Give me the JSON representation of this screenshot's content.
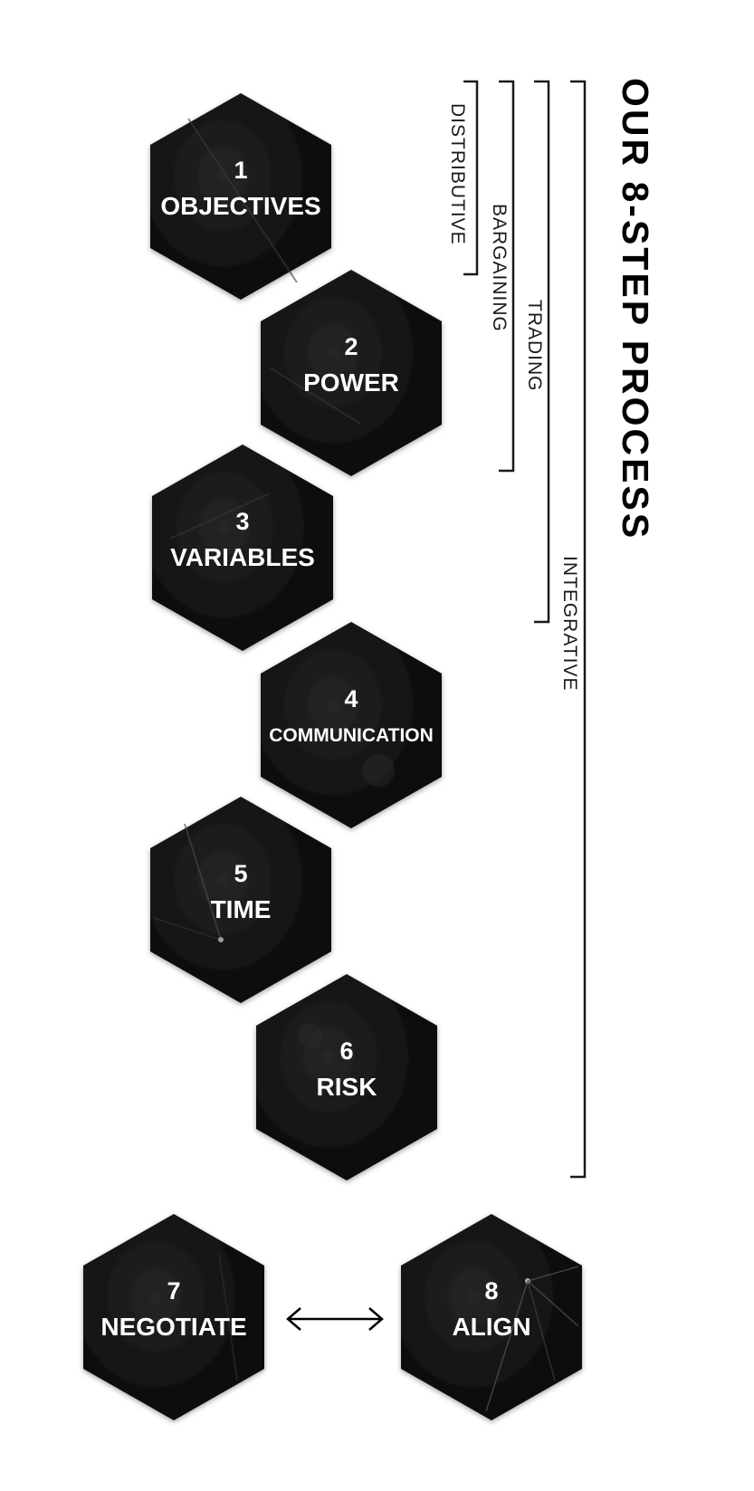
{
  "title": "OUR 8-STEP PROCESS",
  "colors": {
    "hex_fill": "#0d0d0d",
    "hex_text": "#ffffff",
    "bracket_line": "#1a1a1a",
    "title": "#000000"
  },
  "steps": [
    {
      "number": "1",
      "label": "OBJECTIVES"
    },
    {
      "number": "2",
      "label": "POWER"
    },
    {
      "number": "3",
      "label": "VARIABLES"
    },
    {
      "number": "4",
      "label": "COMMUNICATION"
    },
    {
      "number": "5",
      "label": "TIME"
    },
    {
      "number": "6",
      "label": "RISK"
    },
    {
      "number": "7",
      "label": "NEGOTIATE"
    },
    {
      "number": "8",
      "label": "ALIGN"
    }
  ],
  "brackets": [
    {
      "label": "DISTRIBUTIVE",
      "covers_steps": "1"
    },
    {
      "label": "BARGAINING",
      "covers_steps": "1-2"
    },
    {
      "label": "TRADING",
      "covers_steps": "1-3"
    },
    {
      "label": "INTEGRATIVE",
      "covers_steps": "1-6"
    }
  ],
  "arrow": {
    "between_steps": "7-8",
    "icon": "double-arrow-icon"
  }
}
